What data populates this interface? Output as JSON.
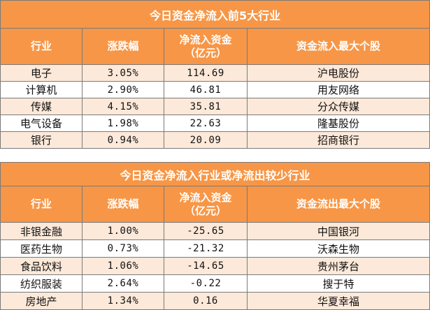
{
  "table_inflow": {
    "title": "今日资金净流入前5大行业",
    "headers": [
      "行业",
      "涨跌幅",
      "净流入资金\n（亿元）",
      "资金流入最大个股"
    ],
    "rows": [
      [
        "电子",
        "3.05%",
        "114.69",
        "沪电股份"
      ],
      [
        "计算机",
        "2.90%",
        "46.81",
        "用友网络"
      ],
      [
        "传媒",
        "4.15%",
        "35.81",
        "分众传媒"
      ],
      [
        "电气设备",
        "1.98%",
        "22.63",
        "隆基股份"
      ],
      [
        "银行",
        "0.94%",
        "20.09",
        "招商银行"
      ]
    ]
  },
  "table_outflow": {
    "title": "今日资金净流入行业或净流出较少行业",
    "headers": [
      "行业",
      "涨跌幅",
      "净流入资金\n（亿元）",
      "资金流出最大个股"
    ],
    "rows": [
      [
        "非银金融",
        "1.00%",
        "-25.65",
        "中国银河"
      ],
      [
        "医药生物",
        "0.73%",
        "-21.32",
        "沃森生物"
      ],
      [
        "食品饮料",
        "1.06%",
        "-14.65",
        "贵州茅台"
      ],
      [
        "纺织服装",
        "2.64%",
        "-0.22",
        "搜于特"
      ],
      [
        "房地产",
        "1.34%",
        "0.16",
        "华夏幸福"
      ]
    ]
  },
  "colors": {
    "header_bg": "#f79646",
    "stripe_bg": "#fde9d9",
    "border": "#7a7a7a"
  }
}
